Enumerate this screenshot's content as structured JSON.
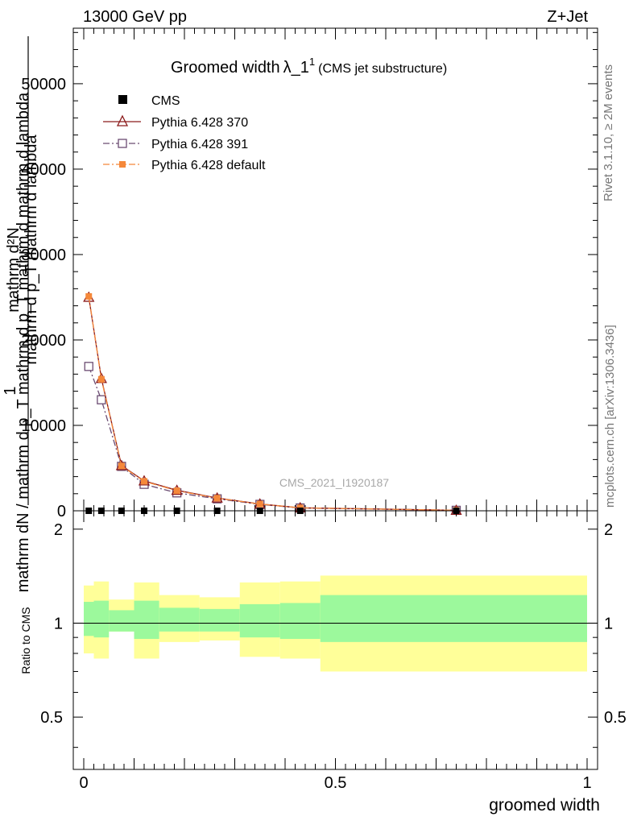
{
  "header": {
    "left": "13000 GeV pp",
    "right": "Z+Jet"
  },
  "side_labels": {
    "rivet": "Rivet 3.1.10, ≥ 2M events",
    "mcplots": "mcplots.cern.ch [arXiv:1306.3436]"
  },
  "chart_data": [
    {
      "type": "line",
      "panel": "main",
      "title": "Groomed width",
      "title_symbol": "λ_1",
      "title_sup": "1",
      "title_sub": "(CMS jet substructure)",
      "watermark": "CMS_2021_I1920187",
      "ylabel": "mathrm d p_T mathrm d lambda",
      "ylabel_frac_top": "mathrm d²N",
      "ylabel_frac_bottom": "mathrm dN / mathrm d p_T mathrm d p_T mathrm d mathrm d lambda",
      "ylabel_one": "1",
      "xlim": [
        -0.02,
        1.02
      ],
      "ylim": [
        0,
        56500
      ],
      "yticks": [
        0,
        10000,
        20000,
        30000,
        40000,
        50000
      ],
      "ytick_labels": [
        "0",
        "10000",
        "20000",
        "30000",
        "40000",
        "50000"
      ],
      "legend": {
        "cms": "CMS",
        "p370": "Pythia 6.428 370",
        "p391": "Pythia 6.428 391",
        "pdef": "Pythia 6.428 default"
      },
      "series": [
        {
          "name": "CMS",
          "color": "#000000",
          "x": [
            0.01,
            0.035,
            0.075,
            0.12,
            0.185,
            0.265,
            0.35,
            0.43,
            0.74
          ],
          "values": [
            2,
            2,
            2,
            2,
            2,
            2,
            2,
            2,
            2
          ]
        },
        {
          "name": "Pythia 6.428 370",
          "color": "#8b1a1a",
          "x": [
            0.01,
            0.035,
            0.075,
            0.12,
            0.185,
            0.265,
            0.35,
            0.43,
            0.74
          ],
          "values": [
            25000,
            15500,
            5300,
            3500,
            2400,
            1500,
            800,
            350,
            60
          ]
        },
        {
          "name": "Pythia 6.428 391",
          "color": "#6b4c72",
          "x": [
            0.01,
            0.035,
            0.075,
            0.12,
            0.185,
            0.265,
            0.35,
            0.43,
            0.74
          ],
          "values": [
            16900,
            13000,
            5200,
            3100,
            2100,
            1400,
            750,
            330,
            55
          ]
        },
        {
          "name": "Pythia 6.428 default",
          "color": "#f5883a",
          "x": [
            0.01,
            0.035,
            0.075,
            0.12,
            0.185,
            0.265,
            0.35,
            0.43,
            0.74
          ],
          "values": [
            25100,
            15400,
            5250,
            3450,
            2350,
            1480,
            790,
            345,
            58
          ]
        }
      ]
    },
    {
      "type": "area",
      "panel": "ratio",
      "ylabel": "Ratio to CMS",
      "xlabel": "groomed width",
      "ylim": [
        0.34,
        2.29
      ],
      "yticks": [
        0.5,
        1,
        2
      ],
      "ytick_labels": [
        "0.5",
        "1",
        "2"
      ],
      "xticks": [
        0,
        0.5,
        1
      ],
      "xtick_labels": [
        "0",
        "0.5",
        "1"
      ],
      "bin_edges": [
        0,
        0.02,
        0.05,
        0.1,
        0.15,
        0.23,
        0.31,
        0.39,
        0.47,
        1.0
      ],
      "green_band": {
        "color": "#9cf99c",
        "upper": [
          1.17,
          1.18,
          1.1,
          1.18,
          1.12,
          1.11,
          1.15,
          1.16,
          1.23
        ],
        "lower": [
          0.91,
          0.9,
          0.94,
          0.89,
          0.94,
          0.94,
          0.9,
          0.89,
          0.87
        ]
      },
      "yellow_band": {
        "color": "#ffff99",
        "upper": [
          1.32,
          1.36,
          1.19,
          1.35,
          1.23,
          1.21,
          1.35,
          1.36,
          1.42
        ],
        "lower": [
          0.8,
          0.77,
          0.94,
          0.77,
          0.87,
          0.88,
          0.78,
          0.77,
          0.7
        ]
      },
      "reference_line": 1
    }
  ]
}
